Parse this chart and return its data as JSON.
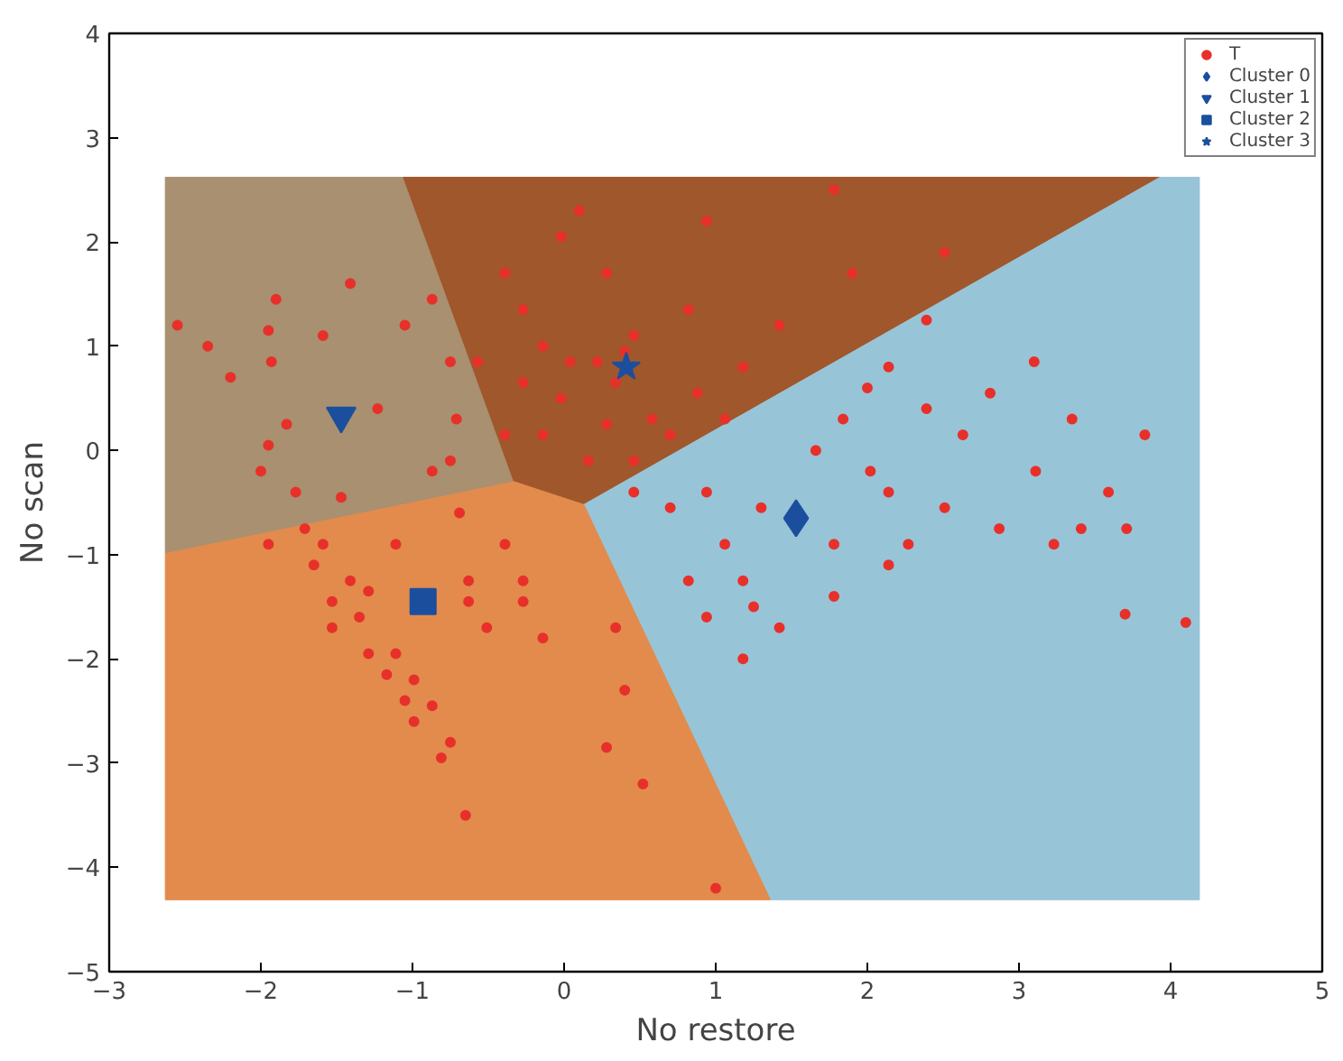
{
  "chart_data": {
    "type": "scatter",
    "xlabel": "No restore",
    "ylabel": "No scan",
    "xlim": [
      -3,
      5
    ],
    "ylim": [
      -5,
      4
    ],
    "xticks": [
      -3,
      -2,
      -1,
      0,
      1,
      2,
      3,
      4,
      5
    ],
    "yticks": [
      -5,
      -4,
      -3,
      -2,
      -1,
      0,
      1,
      2,
      3,
      4
    ],
    "grid": false,
    "legend": "top right",
    "series": [
      {
        "type": "area",
        "color": "#a89070",
        "x": [
          -2.63,
          -1.06,
          -0.33,
          -2.63
        ],
        "values": [
          2.62,
          2.62,
          -0.3,
          -0.99
        ]
      },
      {
        "type": "area",
        "color": "#a0572b",
        "x": [
          -1.06,
          3.93,
          0.13,
          -0.33
        ],
        "values": [
          2.62,
          2.62,
          -0.52,
          -0.3
        ]
      },
      {
        "type": "area",
        "color": "#98c4d8",
        "x": [
          3.93,
          4.19,
          4.19,
          1.36,
          0.13
        ],
        "values": [
          2.62,
          2.62,
          -4.31,
          -4.31,
          -0.52
        ]
      },
      {
        "type": "area",
        "color": "#e28b4c",
        "x": [
          -2.63,
          -0.33,
          0.13,
          1.36,
          -2.63
        ],
        "values": [
          -0.99,
          -0.3,
          -0.52,
          -4.31,
          -4.31
        ]
      },
      {
        "name": "T",
        "marker": "circle",
        "color": "#e8302a",
        "x": [
          -2.55,
          -2.35,
          -2.2,
          -1.95,
          -1.9,
          -1.93,
          -1.83,
          -1.95,
          -2.0,
          -1.77,
          -1.71,
          -1.59,
          -1.47,
          -1.41,
          -1.35,
          -1.29,
          -1.17,
          -1.05,
          -0.99,
          -1.65,
          -1.53,
          -1.11,
          -0.75,
          -0.69,
          -0.63,
          -0.75,
          -1.05,
          -1.41,
          -1.59,
          -1.23,
          -0.87,
          -0.71,
          -0.57,
          -0.87,
          -0.51,
          -0.27,
          -0.39,
          -0.39,
          -0.27,
          -0.14,
          -0.02,
          0.1,
          0.28,
          0.34,
          0.46,
          0.58,
          0.7,
          0.82,
          0.94,
          1.18,
          1.42,
          1.78,
          1.9,
          2.14,
          2.39,
          2.51,
          -0.14,
          -0.02,
          0.16,
          -0.27,
          -0.39,
          0.28,
          0.46,
          0.88,
          1.06,
          0.4,
          0.22,
          0.04,
          0.46,
          0.7,
          0.94,
          1.06,
          1.18,
          0.94,
          1.3,
          1.66,
          1.84,
          2.02,
          2.14,
          2.39,
          2.63,
          2.81,
          2.87,
          3.11,
          3.35,
          3.59,
          3.83,
          3.23,
          3.41,
          3.71,
          3.1,
          3.7,
          4.1,
          2.27,
          1.78,
          1.42,
          1.18,
          1.78,
          2.14,
          2.51,
          2.0,
          1.25,
          0.82,
          0.34,
          0.4,
          0.28,
          0.52,
          1.0,
          -0.65,
          -0.63,
          -0.27,
          -0.14,
          -1.11,
          -0.87,
          -0.75,
          -0.81,
          -0.99,
          -1.95,
          -1.53,
          -1.29
        ],
        "values": [
          1.2,
          1.0,
          0.7,
          1.15,
          1.45,
          0.85,
          0.25,
          0.05,
          -0.2,
          -0.4,
          -0.75,
          -0.9,
          -0.45,
          -1.25,
          -1.6,
          -1.95,
          -2.15,
          -2.4,
          -2.6,
          -1.1,
          -1.7,
          -0.9,
          -0.1,
          -0.6,
          -1.25,
          0.85,
          1.2,
          1.6,
          1.1,
          0.4,
          1.45,
          0.3,
          0.85,
          -0.2,
          -1.7,
          -1.25,
          -0.9,
          1.7,
          1.35,
          1.0,
          2.05,
          2.3,
          1.7,
          0.65,
          1.1,
          0.3,
          0.15,
          1.35,
          2.2,
          0.8,
          1.2,
          2.5,
          1.7,
          0.8,
          1.25,
          1.9,
          0.15,
          0.5,
          -0.1,
          0.65,
          0.15,
          0.25,
          -0.1,
          0.55,
          0.3,
          0.95,
          0.85,
          0.85,
          -0.4,
          -0.55,
          -0.4,
          -0.9,
          -1.25,
          -1.6,
          -0.55,
          0.0,
          0.3,
          -0.2,
          -0.4,
          0.4,
          0.15,
          0.55,
          -0.75,
          -0.2,
          0.3,
          -0.4,
          0.15,
          -0.9,
          -0.75,
          -0.75,
          0.85,
          -1.57,
          -1.65,
          -0.9,
          -0.9,
          -1.7,
          -2.0,
          -1.4,
          -1.1,
          -0.55,
          0.6,
          -1.5,
          -1.25,
          -1.7,
          -2.3,
          -2.85,
          -3.2,
          -4.2,
          -3.5,
          -1.45,
          -1.45,
          -1.8,
          -1.95,
          -2.45,
          -2.8,
          -2.95,
          -2.2,
          -0.9,
          -1.45,
          -1.35
        ]
      },
      {
        "name": "Cluster 0",
        "marker": "diamond",
        "color": "#1b4f9e",
        "x": [
          1.53
        ],
        "values": [
          -0.65
        ]
      },
      {
        "name": "Cluster 1",
        "marker": "triangle",
        "color": "#1b4f9e",
        "x": [
          -1.47
        ],
        "values": [
          0.33
        ]
      },
      {
        "name": "Cluster 2",
        "marker": "square",
        "color": "#1b4f9e",
        "x": [
          -0.93
        ],
        "values": [
          -1.45
        ]
      },
      {
        "name": "Cluster 3",
        "marker": "star",
        "color": "#1b4f9e",
        "x": [
          0.41
        ],
        "values": [
          0.8
        ]
      }
    ]
  }
}
